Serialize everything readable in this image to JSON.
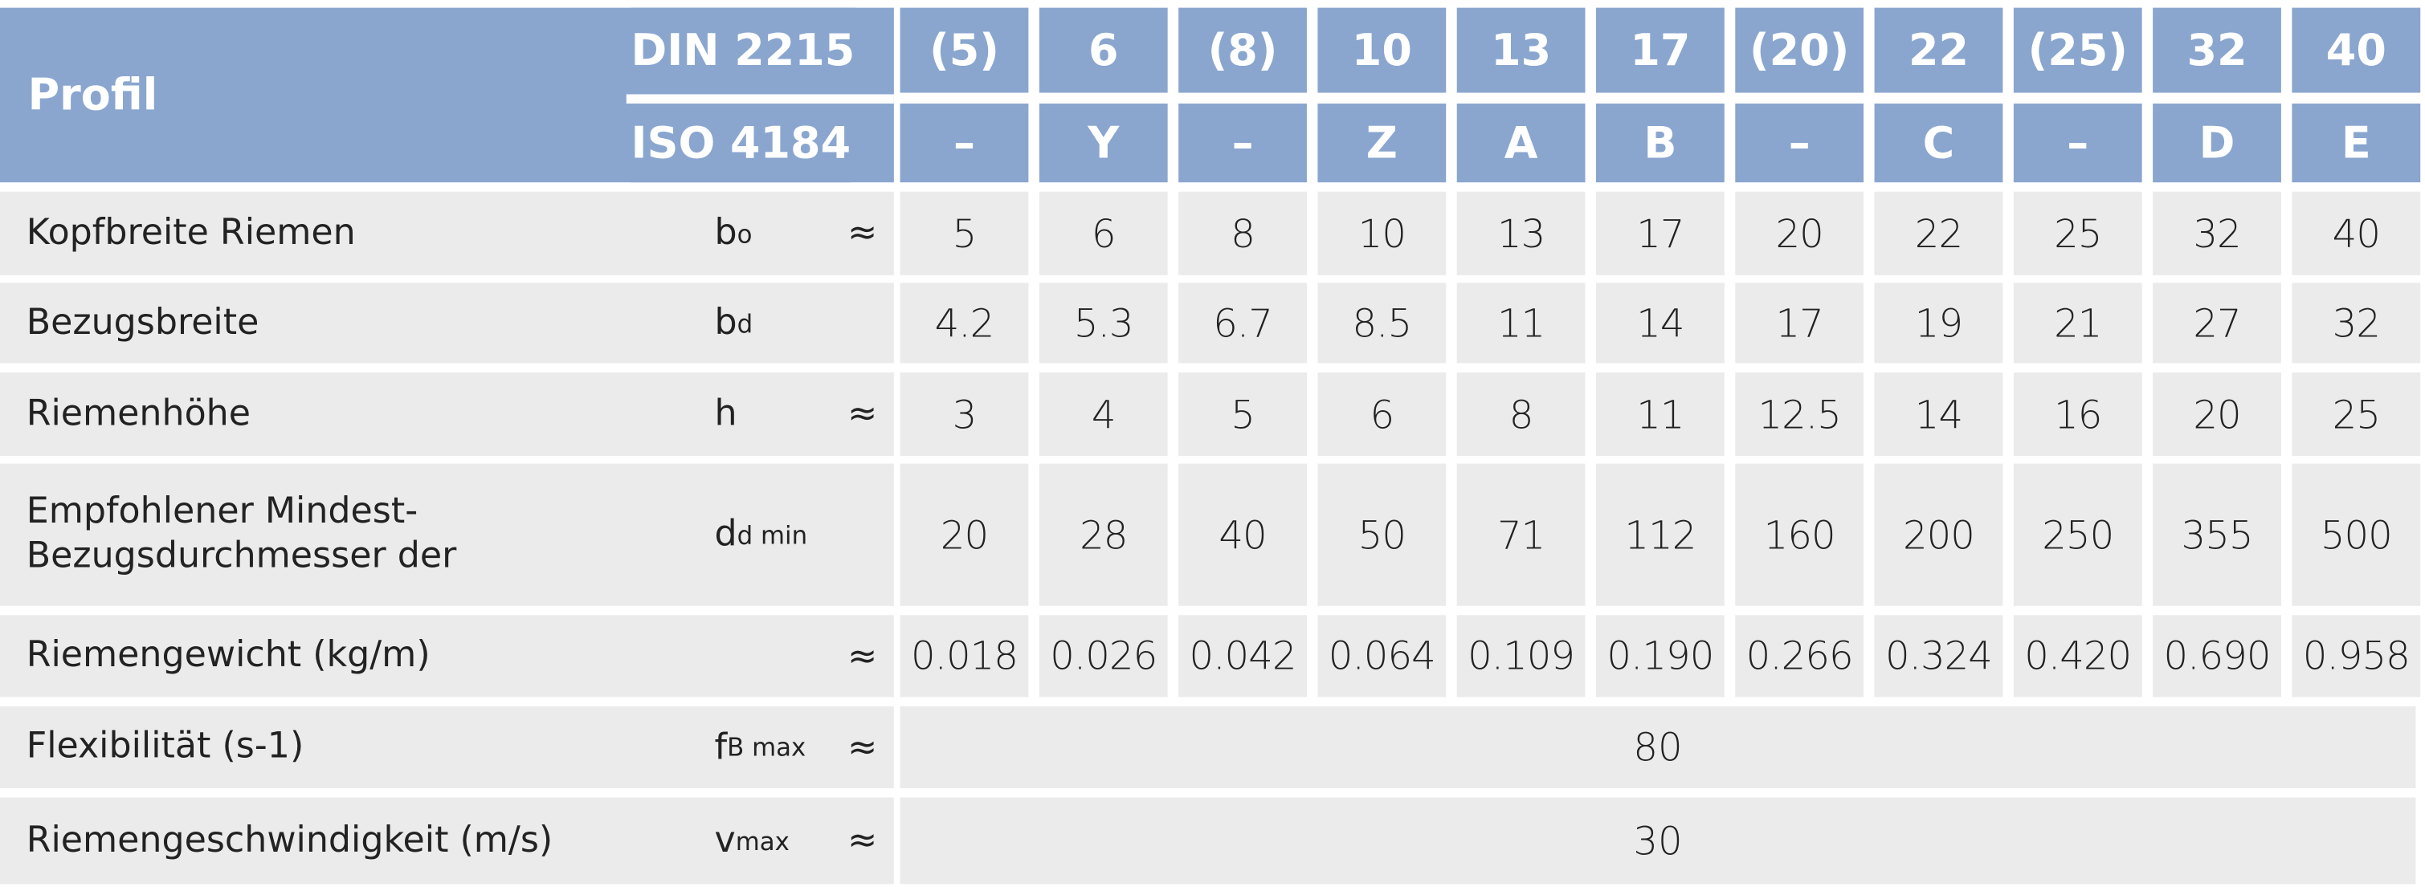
{
  "header": {
    "profil": "Profil",
    "din_label": "DIN 2215",
    "iso_label": "ISO 4184",
    "din": [
      "(5)",
      "6",
      "(8)",
      "10",
      "13",
      "17",
      "(20)",
      "22",
      "(25)",
      "32",
      "40"
    ],
    "iso": [
      "–",
      "Y",
      "–",
      "Z",
      "A",
      "B",
      "–",
      "C",
      "–",
      "D",
      "E"
    ]
  },
  "rows": [
    {
      "label": "Kopfbreite Riemen",
      "symbol": "b",
      "sub": "o",
      "approx": "≈",
      "values": [
        "5",
        "6",
        "8",
        "10",
        "13",
        "17",
        "20",
        "22",
        "25",
        "32",
        "40"
      ]
    },
    {
      "label": "Bezugsbreite",
      "symbol": "b",
      "sub": "d",
      "values": [
        "4.2",
        "5.3",
        "6.7",
        "8.5",
        "11",
        "14",
        "17",
        "19",
        "21",
        "27",
        "32"
      ]
    },
    {
      "label": "Riemenhöhe",
      "symbol": "h",
      "approx": "≈",
      "values": [
        "3",
        "4",
        "5",
        "6",
        "8",
        "11",
        "12.5",
        "14",
        "16",
        "20",
        "25"
      ]
    },
    {
      "label": "Empfohlener Mindest-\nBezugsdurchmesser der",
      "symbol": "d",
      "sub": "d min",
      "values": [
        "20",
        "28",
        "40",
        "50",
        "71",
        "112",
        "160",
        "200",
        "250",
        "355",
        "500"
      ]
    },
    {
      "label": "Riemengewicht (kg/m)",
      "approx": "≈",
      "values": [
        "0.018",
        "0.026",
        "0.042",
        "0.064",
        "0.109",
        "0.190",
        "0.266",
        "0.324",
        "0.420",
        "0.690",
        "0.958"
      ]
    },
    {
      "label": "Flexibilität (s-1)",
      "symbol": "f",
      "sub": "B max",
      "approx": "≈",
      "merged": "80"
    },
    {
      "label": "Riemengeschwindigkeit (m/s)",
      "symbol": "v",
      "sub": "max",
      "approx": "≈",
      "merged": "30"
    }
  ]
}
